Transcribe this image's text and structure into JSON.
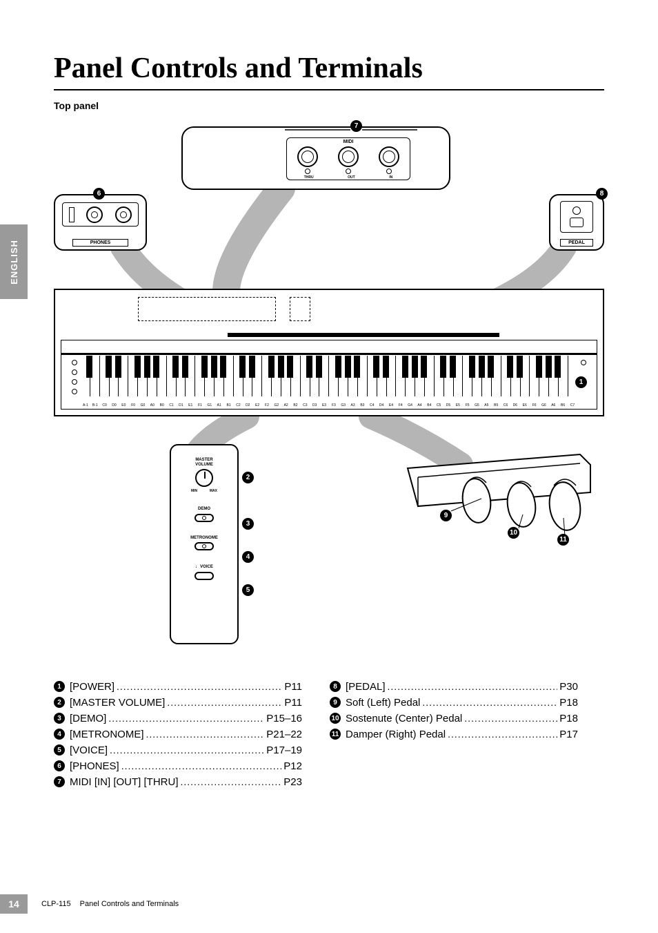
{
  "title": "Panel Controls and Terminals",
  "subtitle": "Top panel",
  "language_tab": "ENGLISH",
  "diagram": {
    "midi": {
      "title": "MIDI",
      "jacks": [
        "THRU",
        "OUT",
        "IN"
      ]
    },
    "phones_label": "PHONES",
    "pedal_label": "PEDAL",
    "controls": {
      "master_volume": {
        "label": "MASTER\nVOLUME",
        "min": "MIN",
        "max": "MAX"
      },
      "demo": "DEMO",
      "metronome": "METRONOME",
      "voice": "VOICE"
    },
    "power_num": "1",
    "note_labels": [
      "A-1",
      "B-1",
      "C0",
      "D0",
      "E0",
      "F0",
      "G0",
      "A0",
      "B0",
      "C1",
      "D1",
      "E1",
      "F1",
      "G1",
      "A1",
      "B1",
      "C2",
      "D2",
      "E2",
      "F2",
      "G2",
      "A2",
      "B2",
      "C3",
      "D3",
      "E3",
      "F3",
      "G3",
      "A3",
      "B3",
      "C4",
      "D4",
      "E4",
      "F4",
      "G4",
      "A4",
      "B4",
      "C5",
      "D5",
      "E5",
      "F5",
      "G5",
      "A5",
      "B5",
      "C6",
      "D6",
      "E6",
      "F6",
      "G6",
      "A6",
      "B6",
      "C7"
    ]
  },
  "callouts": {
    "c1": "1",
    "c2": "2",
    "c3": "3",
    "c4": "4",
    "c5": "5",
    "c6": "6",
    "c7": "7",
    "c8": "8",
    "c9": "9",
    "c10": "10",
    "c11": "11"
  },
  "list_left": [
    {
      "n": "1",
      "label": "[POWER]",
      "page": "P11"
    },
    {
      "n": "2",
      "label": "[MASTER VOLUME]",
      "page": "P11"
    },
    {
      "n": "3",
      "label": "[DEMO]",
      "page": "P15–16"
    },
    {
      "n": "4",
      "label": "[METRONOME]",
      "page": "P21–22"
    },
    {
      "n": "5",
      "label": "[VOICE]",
      "page": "P17–19"
    },
    {
      "n": "6",
      "label": "[PHONES]",
      "page": "P12"
    },
    {
      "n": "7",
      "label": "MIDI [IN] [OUT] [THRU]",
      "page": "P23"
    }
  ],
  "list_right": [
    {
      "n": "8",
      "label": "[PEDAL]",
      "page": "P30"
    },
    {
      "n": "9",
      "label": "Soft (Left) Pedal",
      "page": "P18"
    },
    {
      "n": "10",
      "label": "Sostenute (Center) Pedal",
      "page": "P18"
    },
    {
      "n": "11",
      "label": "Damper (Right) Pedal",
      "page": "P17"
    }
  ],
  "footer": {
    "page_number": "14",
    "model": "CLP-115",
    "section": "Panel Controls and Terminals"
  }
}
